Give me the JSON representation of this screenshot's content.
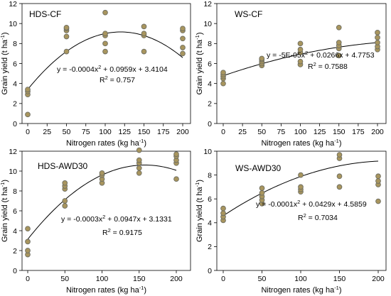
{
  "colors": {
    "marker_fill": "#a8955e",
    "marker_edge": "#6e6e62",
    "curve": "#000000"
  },
  "axis_text": {
    "sup": "-1"
  },
  "chart_data": [
    {
      "type": "scatter",
      "title": "HDS-CF",
      "xlabel": "Nitrogen rates (kg ha",
      "ylabel": "Grain yield (t ha",
      "xlim": [
        0,
        200
      ],
      "ylim": [
        0,
        12
      ],
      "xticks": [
        "0",
        "25",
        "50",
        "75",
        "100",
        "125",
        "150",
        "175",
        "200"
      ],
      "yticks": [
        "0",
        "2",
        "4",
        "6",
        "8",
        "10",
        "12"
      ],
      "grid": false,
      "points": [
        [
          0,
          0.9
        ],
        [
          0,
          2.9
        ],
        [
          0,
          3.2
        ],
        [
          0,
          3.4
        ],
        [
          50,
          7.2
        ],
        [
          50,
          8.7
        ],
        [
          50,
          9.3
        ],
        [
          50,
          9.5
        ],
        [
          50,
          9.6
        ],
        [
          100,
          7.2
        ],
        [
          100,
          8.0
        ],
        [
          100,
          8.8
        ],
        [
          100,
          9.0
        ],
        [
          100,
          11.1
        ],
        [
          150,
          7.2
        ],
        [
          150,
          8.8
        ],
        [
          150,
          9.0
        ],
        [
          150,
          9.7
        ],
        [
          200,
          7.0
        ],
        [
          200,
          7.6
        ],
        [
          200,
          8.5
        ],
        [
          200,
          9.3
        ],
        [
          200,
          9.5
        ]
      ],
      "fit": {
        "a": -0.0004,
        "b": 0.0959,
        "c": 3.4104
      },
      "equation": "y = -0.0004x",
      "equation_tail": " + 0.0959x + 3.4104",
      "r2_label": "R",
      "r2_value": " = 0.757"
    },
    {
      "type": "scatter",
      "title": "WS-CF",
      "xlabel": "Nitrogen rates (kg ha",
      "ylabel": "Grain yield (t ha",
      "xlim": [
        0,
        200
      ],
      "ylim": [
        0,
        12
      ],
      "xticks": [
        "0",
        "25",
        "50",
        "75",
        "100",
        "125",
        "150",
        "175",
        "200"
      ],
      "yticks": [
        "0",
        "2",
        "4",
        "6",
        "8",
        "10",
        "12"
      ],
      "grid": false,
      "points": [
        [
          0,
          4.0
        ],
        [
          0,
          4.5
        ],
        [
          0,
          4.7
        ],
        [
          0,
          4.9
        ],
        [
          0,
          5.1
        ],
        [
          50,
          5.8
        ],
        [
          50,
          6.0
        ],
        [
          50,
          6.2
        ],
        [
          50,
          6.4
        ],
        [
          50,
          6.5
        ],
        [
          100,
          5.9
        ],
        [
          100,
          6.2
        ],
        [
          100,
          7.1
        ],
        [
          100,
          7.4
        ],
        [
          100,
          8.0
        ],
        [
          150,
          6.8
        ],
        [
          150,
          7.5
        ],
        [
          150,
          7.8
        ],
        [
          150,
          8.1
        ],
        [
          150,
          9.6
        ],
        [
          200,
          7.4
        ],
        [
          200,
          7.7
        ],
        [
          200,
          8.1
        ],
        [
          200,
          8.6
        ],
        [
          200,
          9.1
        ]
      ],
      "fit": {
        "a": -5e-05,
        "b": 0.0266,
        "c": 4.7753
      },
      "equation": "y = -5E-05x",
      "equation_tail": " + 0.0266x + 4.7753",
      "r2_label": "R",
      "r2_value": " = 0.7588"
    },
    {
      "type": "scatter",
      "title": "HDS-AWD30",
      "xlabel": "Nitrogen rates (kg ha",
      "ylabel": "Grain yield (t ha",
      "xlim": [
        0,
        200
      ],
      "ylim": [
        0,
        12
      ],
      "xticks": [
        "0",
        "50",
        "100",
        "150",
        "200"
      ],
      "yticks": [
        "0",
        "2",
        "4",
        "6",
        "8",
        "10",
        "12"
      ],
      "grid": false,
      "points": [
        [
          0,
          1.6
        ],
        [
          0,
          2.0
        ],
        [
          0,
          2.9
        ],
        [
          0,
          4.2
        ],
        [
          50,
          6.5
        ],
        [
          50,
          7.0
        ],
        [
          50,
          8.2
        ],
        [
          50,
          8.5
        ],
        [
          50,
          8.8
        ],
        [
          100,
          8.8
        ],
        [
          100,
          9.2
        ],
        [
          100,
          9.6
        ],
        [
          100,
          9.8
        ],
        [
          150,
          9.8
        ],
        [
          150,
          10.3
        ],
        [
          150,
          10.8
        ],
        [
          150,
          11.1
        ],
        [
          150,
          12.1
        ],
        [
          200,
          9.2
        ],
        [
          200,
          10.8
        ],
        [
          200,
          11.1
        ],
        [
          200,
          11.5
        ],
        [
          200,
          11.7
        ]
      ],
      "fit": {
        "a": -0.0003,
        "b": 0.0947,
        "c": 3.1331
      },
      "equation": "y = -0.0003x",
      "equation_tail": " + 0.0947x + 3.1331",
      "r2_label": "R",
      "r2_value": " = 0.9175"
    },
    {
      "type": "scatter",
      "title": "WS-AWD30",
      "xlabel": "Nitrogen rates (kg ha",
      "ylabel": "Grain yield (t ha",
      "xlim": [
        0,
        200
      ],
      "ylim": [
        0,
        10
      ],
      "xticks": [
        "0",
        "50",
        "100",
        "150",
        "200"
      ],
      "yticks": [
        "0",
        "2",
        "4",
        "6",
        "8",
        "10"
      ],
      "grid": false,
      "points": [
        [
          0,
          4.2
        ],
        [
          0,
          4.5
        ],
        [
          0,
          4.8
        ],
        [
          0,
          5.2
        ],
        [
          50,
          5.6
        ],
        [
          50,
          5.9
        ],
        [
          50,
          6.2
        ],
        [
          50,
          6.5
        ],
        [
          50,
          6.9
        ],
        [
          100,
          6.6
        ],
        [
          100,
          6.8
        ],
        [
          100,
          7.0
        ],
        [
          100,
          8.0
        ],
        [
          150,
          7.0
        ],
        [
          150,
          7.9
        ],
        [
          150,
          9.4
        ],
        [
          150,
          9.7
        ],
        [
          200,
          5.8
        ],
        [
          200,
          7.2
        ],
        [
          200,
          7.5
        ],
        [
          200,
          7.9
        ]
      ],
      "fit": {
        "a": -0.0001,
        "b": 0.0429,
        "c": 4.5859
      },
      "equation": "y = -0.0001x",
      "equation_tail": " + 0.0429x + 4.5859",
      "r2_label": "R",
      "r2_value": " = 0.7034"
    }
  ]
}
